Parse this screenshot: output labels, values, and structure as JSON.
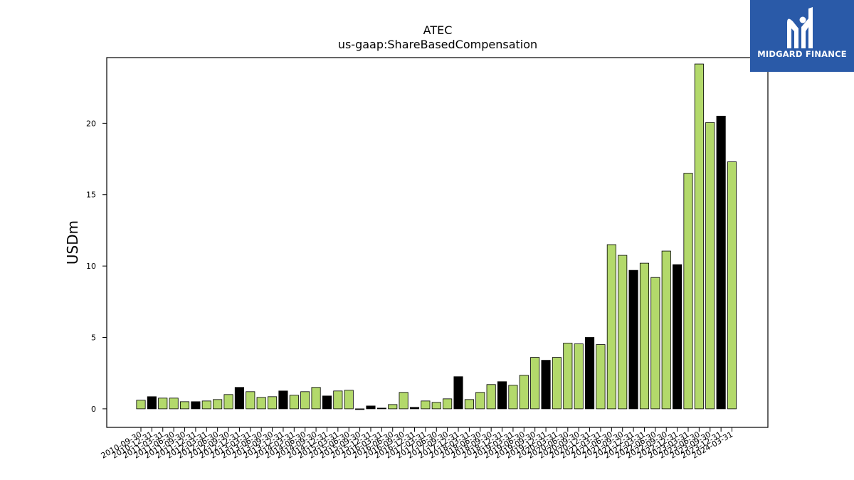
{
  "brand": {
    "name": "MIDGARD FINANCE",
    "logo_icon": "midgard-m-icon",
    "bg_color": "#2a5aa8"
  },
  "chart_data": {
    "type": "bar",
    "title": "ATEC",
    "subtitle": "us-gaap:ShareBasedCompensation",
    "xlabel": "",
    "ylabel": "USDm",
    "ylim": [
      -1.3,
      24.6
    ],
    "yticks": [
      0,
      5,
      10,
      15,
      20
    ],
    "grid": false,
    "colors": {
      "green": "#b3d96b",
      "black": "#000000",
      "edge": "#000000"
    },
    "categories": [
      "2010-09-30",
      "2010-12-31",
      "2011-03-31",
      "2011-06-30",
      "2011-09-30",
      "2011-12-31",
      "2012-03-31",
      "2012-06-30",
      "2012-09-30",
      "2012-12-31",
      "2013-03-31",
      "2013-06-30",
      "2013-09-30",
      "2013-12-31",
      "2014-03-31",
      "2014-06-30",
      "2014-09-30",
      "2014-12-31",
      "2015-03-31",
      "2015-06-30",
      "2015-09-30",
      "2015-12-31",
      "2016-03-31",
      "2016-06-30",
      "2016-09-30",
      "2016-12-31",
      "2017-03-31",
      "2017-06-30",
      "2017-09-30",
      "2017-12-31",
      "2018-03-31",
      "2018-06-30",
      "2018-09-30",
      "2018-12-31",
      "2019-03-31",
      "2019-06-30",
      "2019-09-30",
      "2019-12-31",
      "2020-03-31",
      "2020-06-30",
      "2020-09-30",
      "2020-12-31",
      "2021-03-31",
      "2021-06-30",
      "2021-09-30",
      "2021-12-31",
      "2022-03-31",
      "2022-06-30",
      "2022-09-30",
      "2022-12-31",
      "2023-03-31",
      "2023-06-30",
      "2023-09-30",
      "2023-12-31",
      "2024-03-31"
    ],
    "values": [
      0.6,
      0.85,
      0.75,
      0.75,
      0.5,
      0.5,
      0.55,
      0.65,
      1.0,
      1.5,
      1.2,
      0.8,
      0.85,
      1.25,
      0.95,
      1.2,
      1.5,
      0.9,
      1.25,
      1.3,
      -0.05,
      0.2,
      0.05,
      0.3,
      1.15,
      0.1,
      0.55,
      0.45,
      0.7,
      2.25,
      0.65,
      1.15,
      1.7,
      1.9,
      1.65,
      2.35,
      3.6,
      3.4,
      3.6,
      4.6,
      4.55,
      5.0,
      4.5,
      11.5,
      10.75,
      9.7,
      10.2,
      9.2,
      11.05,
      10.1,
      16.5,
      24.15,
      20.05,
      20.5,
      17.3
    ],
    "bar_colors": [
      "green",
      "black",
      "green",
      "green",
      "green",
      "black",
      "green",
      "green",
      "green",
      "black",
      "green",
      "green",
      "green",
      "black",
      "green",
      "green",
      "green",
      "black",
      "green",
      "green",
      "black",
      "black",
      "black",
      "green",
      "green",
      "black",
      "green",
      "green",
      "green",
      "black",
      "green",
      "green",
      "green",
      "black",
      "green",
      "green",
      "green",
      "black",
      "green",
      "green",
      "green",
      "black",
      "green",
      "green",
      "green",
      "black",
      "green",
      "green",
      "green",
      "black",
      "green",
      "green",
      "green",
      "black",
      "green"
    ]
  }
}
